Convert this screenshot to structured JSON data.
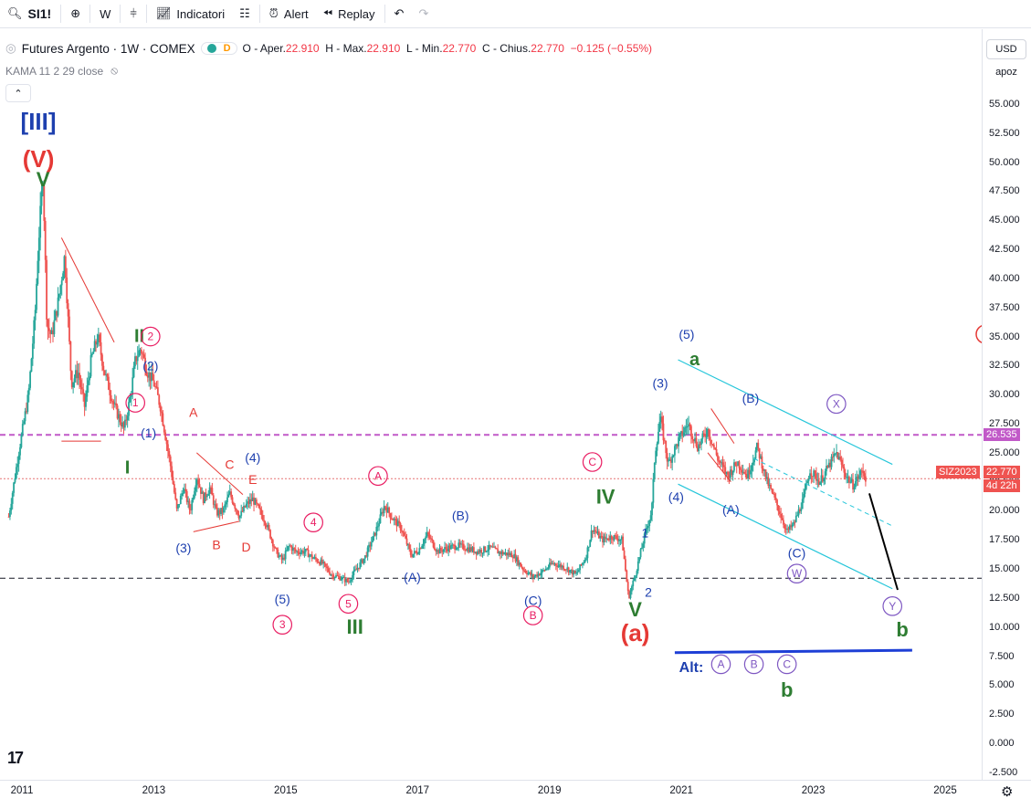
{
  "toolbar": {
    "symbol": "SI1!",
    "interval": "W",
    "indicators_label": "Indicatori",
    "alert_label": "Alert",
    "replay_label": "Replay"
  },
  "legend": {
    "title": "Futures Argento · 1W · COMEX",
    "badge_letter": "D",
    "o_label": "O - Aper.",
    "o_value": "22.910",
    "h_label": "H - Max.",
    "h_value": "22.910",
    "l_label": "L - Min.",
    "l_value": "22.770",
    "c_label": "C - Chius.",
    "c_value": "22.770",
    "change": "−0.125 (−0.55%)",
    "kama": "KAMA 11 2 29 close"
  },
  "axis": {
    "currency": "USD",
    "scale_mode": "apoz",
    "y_ticks": [
      "55.000",
      "52.500",
      "50.000",
      "47.500",
      "45.000",
      "42.500",
      "40.000",
      "37.500",
      "35.000",
      "32.500",
      "30.000",
      "27.500",
      "25.000",
      "22.500",
      "20.000",
      "17.500",
      "15.000",
      "12.500",
      "10.000",
      "7.500",
      "5.000",
      "2.500",
      "0.000",
      "-2.500"
    ],
    "x_ticks": [
      "2011",
      "2013",
      "2015",
      "2017",
      "2019",
      "2021",
      "2023",
      "2025"
    ],
    "level_tag": "26.535",
    "last_tag": "22.770",
    "contract_tag": "SIZ2023",
    "countdown": "4d 22h"
  },
  "colors": {
    "up": "#26a69a",
    "down": "#ef5350",
    "red_label": "#e53935",
    "blue_label": "#1e40af",
    "green_label": "#2e7d32",
    "purple": "#7e57c2",
    "pink": "#e91e63",
    "cyan": "#26c6da",
    "dashed_level": "#c159c8"
  },
  "chart_data": {
    "type": "candlestick",
    "title": "Futures Argento · 1W · COMEX",
    "ylim": [
      -2.5,
      56
    ],
    "xlim": [
      2010.8,
      2025.5
    ],
    "price_path": [
      [
        2010.8,
        19.5
      ],
      [
        2010.95,
        25
      ],
      [
        2011.1,
        30
      ],
      [
        2011.2,
        37
      ],
      [
        2011.25,
        43
      ],
      [
        2011.32,
        49
      ],
      [
        2011.38,
        36
      ],
      [
        2011.45,
        35
      ],
      [
        2011.55,
        38
      ],
      [
        2011.65,
        42
      ],
      [
        2011.75,
        31
      ],
      [
        2011.85,
        32
      ],
      [
        2011.95,
        29
      ],
      [
        2012.05,
        33
      ],
      [
        2012.15,
        35
      ],
      [
        2012.25,
        32
      ],
      [
        2012.4,
        29
      ],
      [
        2012.55,
        27
      ],
      [
        2012.65,
        30
      ],
      [
        2012.72,
        33
      ],
      [
        2012.8,
        34
      ],
      [
        2012.9,
        32
      ],
      [
        2013.0,
        31
      ],
      [
        2013.1,
        29
      ],
      [
        2013.25,
        24
      ],
      [
        2013.35,
        20
      ],
      [
        2013.45,
        22
      ],
      [
        2013.55,
        20
      ],
      [
        2013.65,
        23
      ],
      [
        2013.75,
        21
      ],
      [
        2013.85,
        22
      ],
      [
        2013.95,
        19.8
      ],
      [
        2014.05,
        20
      ],
      [
        2014.15,
        21.5
      ],
      [
        2014.3,
        19.5
      ],
      [
        2014.4,
        20.5
      ],
      [
        2014.5,
        21
      ],
      [
        2014.6,
        20
      ],
      [
        2014.7,
        19
      ],
      [
        2014.85,
        16.5
      ],
      [
        2014.95,
        15.7
      ],
      [
        2015.05,
        17
      ],
      [
        2015.15,
        16.5
      ],
      [
        2015.3,
        16.5
      ],
      [
        2015.4,
        16
      ],
      [
        2015.55,
        15.5
      ],
      [
        2015.7,
        14.5
      ],
      [
        2015.85,
        14.2
      ],
      [
        2015.95,
        13.9
      ],
      [
        2016.05,
        14.8
      ],
      [
        2016.2,
        16
      ],
      [
        2016.35,
        18
      ],
      [
        2016.5,
        20.5
      ],
      [
        2016.6,
        19.5
      ],
      [
        2016.75,
        18.5
      ],
      [
        2016.9,
        16.2
      ],
      [
        2017.0,
        16.5
      ],
      [
        2017.15,
        18
      ],
      [
        2017.3,
        16.5
      ],
      [
        2017.45,
        16.8
      ],
      [
        2017.6,
        17
      ],
      [
        2017.75,
        16.8
      ],
      [
        2017.9,
        16.5
      ],
      [
        2018.1,
        16.8
      ],
      [
        2018.25,
        16.4
      ],
      [
        2018.45,
        16.2
      ],
      [
        2018.6,
        15
      ],
      [
        2018.75,
        14.3
      ],
      [
        2018.9,
        14.8
      ],
      [
        2019.05,
        15.5
      ],
      [
        2019.25,
        15.1
      ],
      [
        2019.4,
        14.5
      ],
      [
        2019.55,
        16
      ],
      [
        2019.65,
        18.5
      ],
      [
        2019.8,
        17.5
      ],
      [
        2019.95,
        17.8
      ],
      [
        2020.1,
        17.5
      ],
      [
        2020.2,
        12.5
      ],
      [
        2020.3,
        14.5
      ],
      [
        2020.45,
        18
      ],
      [
        2020.55,
        20
      ],
      [
        2020.6,
        25
      ],
      [
        2020.68,
        28
      ],
      [
        2020.8,
        24
      ],
      [
        2020.95,
        26
      ],
      [
        2021.1,
        27.5
      ],
      [
        2021.25,
        25.5
      ],
      [
        2021.4,
        27
      ],
      [
        2021.55,
        24.5
      ],
      [
        2021.7,
        23
      ],
      [
        2021.85,
        24.2
      ],
      [
        2022.0,
        23
      ],
      [
        2022.15,
        25.5
      ],
      [
        2022.3,
        22.5
      ],
      [
        2022.45,
        20.5
      ],
      [
        2022.6,
        18.2
      ],
      [
        2022.7,
        18.8
      ],
      [
        2022.85,
        21
      ],
      [
        2022.95,
        23.5
      ],
      [
        2023.1,
        22.5
      ],
      [
        2023.25,
        24
      ],
      [
        2023.35,
        25
      ],
      [
        2023.5,
        23
      ],
      [
        2023.6,
        22.2
      ],
      [
        2023.75,
        23.5
      ],
      [
        2023.8,
        22.77
      ]
    ],
    "price_levels": [
      {
        "value": 26.535,
        "style": "dashed",
        "color": "#c159c8"
      },
      {
        "value": 22.77,
        "style": "dotted",
        "color": "#e57373"
      },
      {
        "value": 14.2,
        "style": "dashed",
        "color": "#131722"
      }
    ],
    "wave_labels": [
      {
        "t": "[III]",
        "x": 2011.25,
        "y": 53.5,
        "color": "#1e40af",
        "size": 26
      },
      {
        "t": "(V)",
        "x": 2011.25,
        "y": 50.3,
        "color": "#e53935",
        "size": 26
      },
      {
        "t": "V",
        "x": 2011.32,
        "y": 48.5,
        "color": "#2e7d32",
        "size": 22
      },
      {
        "t": "II",
        "x": 2012.78,
        "y": 35,
        "color": "#2e7d32",
        "size": 20
      },
      {
        "t": "2",
        "x": 2012.95,
        "y": 35,
        "color": "#e91e63",
        "circle": true,
        "size": 12
      },
      {
        "t": "(2)",
        "x": 2012.95,
        "y": 32.5,
        "color": "#1e40af",
        "size": 14
      },
      {
        "t": "1",
        "x": 2012.72,
        "y": 29.3,
        "color": "#e91e63",
        "circle": true,
        "size": 12
      },
      {
        "t": "(1)",
        "x": 2012.92,
        "y": 26.7,
        "color": "#1e40af",
        "size": 14
      },
      {
        "t": "I",
        "x": 2012.6,
        "y": 23.7,
        "color": "#2e7d32",
        "size": 20
      },
      {
        "t": "A",
        "x": 2013.6,
        "y": 28.5,
        "color": "#e53935",
        "size": 14
      },
      {
        "t": "C",
        "x": 2014.15,
        "y": 24,
        "color": "#e53935",
        "size": 14
      },
      {
        "t": "E",
        "x": 2014.5,
        "y": 22.7,
        "color": "#e53935",
        "size": 14
      },
      {
        "t": "(4)",
        "x": 2014.5,
        "y": 24.6,
        "color": "#1e40af",
        "size": 14
      },
      {
        "t": "(3)",
        "x": 2013.45,
        "y": 16.8,
        "color": "#1e40af",
        "size": 14
      },
      {
        "t": "B",
        "x": 2013.95,
        "y": 17.1,
        "color": "#e53935",
        "size": 14
      },
      {
        "t": "D",
        "x": 2014.4,
        "y": 16.9,
        "color": "#e53935",
        "size": 14
      },
      {
        "t": "(5)",
        "x": 2014.95,
        "y": 12.4,
        "color": "#1e40af",
        "size": 14
      },
      {
        "t": "3",
        "x": 2014.95,
        "y": 10.2,
        "color": "#e91e63",
        "circle": true,
        "size": 12
      },
      {
        "t": "4",
        "x": 2015.42,
        "y": 19,
        "color": "#e91e63",
        "circle": true,
        "size": 12
      },
      {
        "t": "5",
        "x": 2015.95,
        "y": 12,
        "color": "#e91e63",
        "circle": true,
        "size": 12
      },
      {
        "t": "III",
        "x": 2016.05,
        "y": 10,
        "color": "#2e7d32",
        "size": 22
      },
      {
        "t": "A",
        "x": 2016.4,
        "y": 23,
        "color": "#e91e63",
        "circle": true,
        "size": 12
      },
      {
        "t": "(A)",
        "x": 2016.92,
        "y": 14.3,
        "color": "#1e40af",
        "size": 14
      },
      {
        "t": "(B)",
        "x": 2017.65,
        "y": 19.6,
        "color": "#1e40af",
        "size": 14
      },
      {
        "t": "(C)",
        "x": 2018.75,
        "y": 12.3,
        "color": "#1e40af",
        "size": 14
      },
      {
        "t": "B",
        "x": 2018.75,
        "y": 11,
        "color": "#e91e63",
        "circle": true,
        "size": 12
      },
      {
        "t": "C",
        "x": 2019.65,
        "y": 24.2,
        "color": "#e91e63",
        "circle": true,
        "size": 12
      },
      {
        "t": "IV",
        "x": 2019.85,
        "y": 21.2,
        "color": "#2e7d32",
        "size": 22
      },
      {
        "t": "1",
        "x": 2020.45,
        "y": 18.1,
        "color": "#1e40af",
        "size": 14
      },
      {
        "t": "2",
        "x": 2020.5,
        "y": 13,
        "color": "#1e40af",
        "size": 14
      },
      {
        "t": "V",
        "x": 2020.3,
        "y": 11.5,
        "color": "#2e7d32",
        "size": 22
      },
      {
        "t": "(a)",
        "x": 2020.3,
        "y": 9.5,
        "color": "#e53935",
        "size": 26
      },
      {
        "t": "(3)",
        "x": 2020.68,
        "y": 31,
        "color": "#1e40af",
        "size": 14
      },
      {
        "t": "(5)",
        "x": 2021.08,
        "y": 35.2,
        "color": "#1e40af",
        "size": 14
      },
      {
        "t": "a",
        "x": 2021.2,
        "y": 33,
        "color": "#2e7d32",
        "size": 20
      },
      {
        "t": "(4)",
        "x": 2020.92,
        "y": 21.2,
        "color": "#1e40af",
        "size": 14
      },
      {
        "t": "(B)",
        "x": 2022.05,
        "y": 29.7,
        "color": "#1e40af",
        "size": 14
      },
      {
        "t": "(A)",
        "x": 2021.75,
        "y": 20.1,
        "color": "#1e40af",
        "size": 14
      },
      {
        "t": "X",
        "x": 2023.35,
        "y": 29.2,
        "color": "#7e57c2",
        "circle": true,
        "size": 12
      },
      {
        "t": "(C)",
        "x": 2022.75,
        "y": 16.4,
        "color": "#1e40af",
        "size": 14
      },
      {
        "t": "W",
        "x": 2022.75,
        "y": 14.6,
        "color": "#7e57c2",
        "circle": true,
        "size": 12
      },
      {
        "t": "Y",
        "x": 2024.2,
        "y": 11.8,
        "color": "#7e57c2",
        "circle": true,
        "size": 12
      },
      {
        "t": "b",
        "x": 2024.35,
        "y": 9.8,
        "color": "#2e7d32",
        "size": 22
      },
      {
        "t": "Alt:",
        "x": 2021.15,
        "y": 6.5,
        "color": "#1e40af",
        "size": 16
      },
      {
        "t": "A",
        "x": 2021.6,
        "y": 6.8,
        "color": "#7e57c2",
        "circle": true,
        "size": 12
      },
      {
        "t": "B",
        "x": 2022.1,
        "y": 6.8,
        "color": "#7e57c2",
        "circle": true,
        "size": 12
      },
      {
        "t": "C",
        "x": 2022.6,
        "y": 6.8,
        "color": "#7e57c2",
        "circle": true,
        "size": 12
      },
      {
        "t": "b",
        "x": 2022.6,
        "y": 4.6,
        "color": "#2e7d32",
        "size": 22
      }
    ],
    "trend_lines": [
      {
        "x1": 2011.6,
        "y1": 43.5,
        "x2": 2012.4,
        "y2": 34.5,
        "color": "#e53935",
        "w": 1
      },
      {
        "x1": 2011.6,
        "y1": 26.0,
        "x2": 2012.2,
        "y2": 26.0,
        "color": "#e53935",
        "w": 1
      },
      {
        "x1": 2013.65,
        "y1": 25.0,
        "x2": 2014.35,
        "y2": 21.4,
        "color": "#e53935",
        "w": 1
      },
      {
        "x1": 2013.6,
        "y1": 18.2,
        "x2": 2014.3,
        "y2": 19.1,
        "color": "#e53935",
        "w": 1
      },
      {
        "x1": 2021.45,
        "y1": 28.8,
        "x2": 2021.8,
        "y2": 25.8,
        "color": "#e53935",
        "w": 1
      },
      {
        "x1": 2021.4,
        "y1": 25.0,
        "x2": 2021.75,
        "y2": 22.5,
        "color": "#e53935",
        "w": 1
      },
      {
        "x1": 2020.95,
        "y1": 33.0,
        "x2": 2024.2,
        "y2": 24.0,
        "color": "#26c6da",
        "w": 1.2
      },
      {
        "x1": 2020.95,
        "y1": 22.3,
        "x2": 2024.2,
        "y2": 13.3,
        "color": "#26c6da",
        "w": 1.2
      },
      {
        "x1": 2022.1,
        "y1": 24.5,
        "x2": 2024.2,
        "y2": 18.7,
        "color": "#26c6da",
        "w": 1,
        "dash": true
      },
      {
        "x1": 2023.85,
        "y1": 21.5,
        "x2": 2024.28,
        "y2": 13.2,
        "color": "#000000",
        "w": 2
      },
      {
        "x1": 2020.9,
        "y1": 7.8,
        "x2": 2024.5,
        "y2": 8.0,
        "color": "#1e3fd6",
        "w": 3
      }
    ]
  }
}
